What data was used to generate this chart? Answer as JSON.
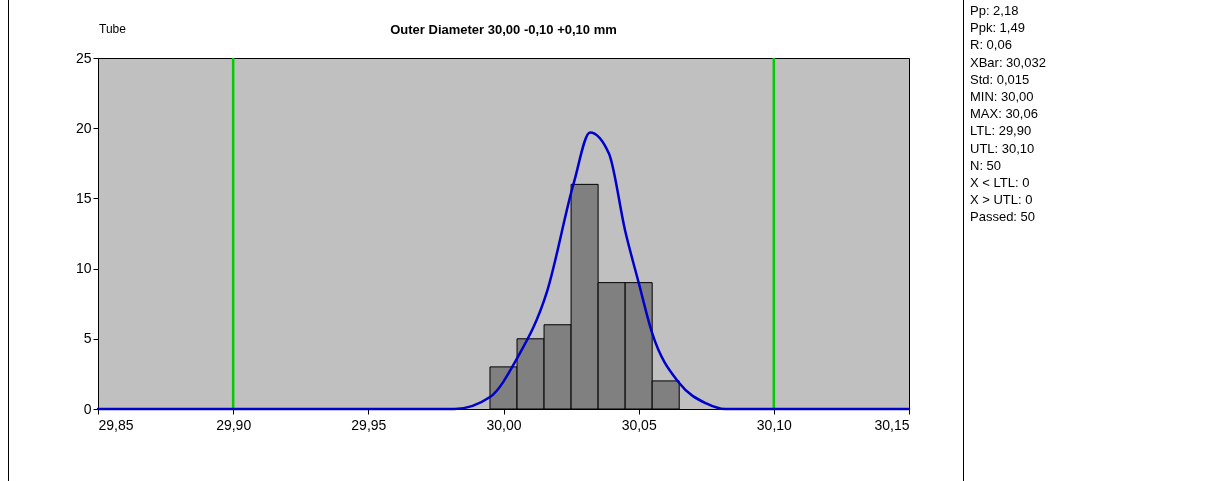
{
  "chart_data": {
    "type": "histogram",
    "title": "Outer Diameter   30,00 -0,10 +0,10 mm",
    "annotations": [
      "Tube",
      "Pp: 2,18",
      "Ppk: 1,49",
      "R: 0,06",
      "XBar: 30,032",
      "Std: 0,015",
      "MIN: 30,00",
      "MAX: 30,06",
      "LTL: 29,90",
      "UTL: 30,10",
      "N: 50",
      "X < LTL: 0",
      "X > UTL: 0",
      "Passed: 50"
    ],
    "bins": [
      29.995,
      30.005,
      30.015,
      30.025,
      30.035,
      30.045,
      30.055,
      30.065
    ],
    "series": [
      {
        "color": "#808080",
        "values": [
          3,
          5,
          6,
          16,
          9,
          9,
          2
        ]
      },
      {
        "type": "line",
        "color": "#0000cc",
        "x": [
          29.85,
          29.982,
          29.995,
          30.005,
          30.016,
          30.026,
          30.032,
          30.039,
          30.045,
          30.05,
          30.055,
          30.065,
          30.075,
          30.082,
          30.15
        ],
        "values": [
          0,
          0,
          0.85,
          3.6,
          8.3,
          16.1,
          19.7,
          18.2,
          12.7,
          9.0,
          5.4,
          1.85,
          0.4,
          0,
          0
        ]
      }
    ],
    "ref_lines": [
      {
        "axis": "x",
        "value": 29.9,
        "color": "#00cc00"
      },
      {
        "axis": "x",
        "value": 30.1,
        "color": "#00cc00"
      }
    ],
    "xlim": [
      29.85,
      30.15
    ],
    "xticks": [
      {
        "value": 29.85,
        "label": "29,85"
      },
      {
        "value": 29.9,
        "label": "29,90"
      },
      {
        "value": 29.95,
        "label": "29,95"
      },
      {
        "value": 30.0,
        "label": "30,00"
      },
      {
        "value": 30.05,
        "label": "30,05"
      },
      {
        "value": 30.1,
        "label": "30,10"
      },
      {
        "value": 30.15,
        "label": "30,15"
      }
    ],
    "ylim": [
      0,
      25
    ],
    "yticks": [
      0,
      5,
      10,
      15,
      20,
      25
    ],
    "marker": "none",
    "grid": false
  }
}
